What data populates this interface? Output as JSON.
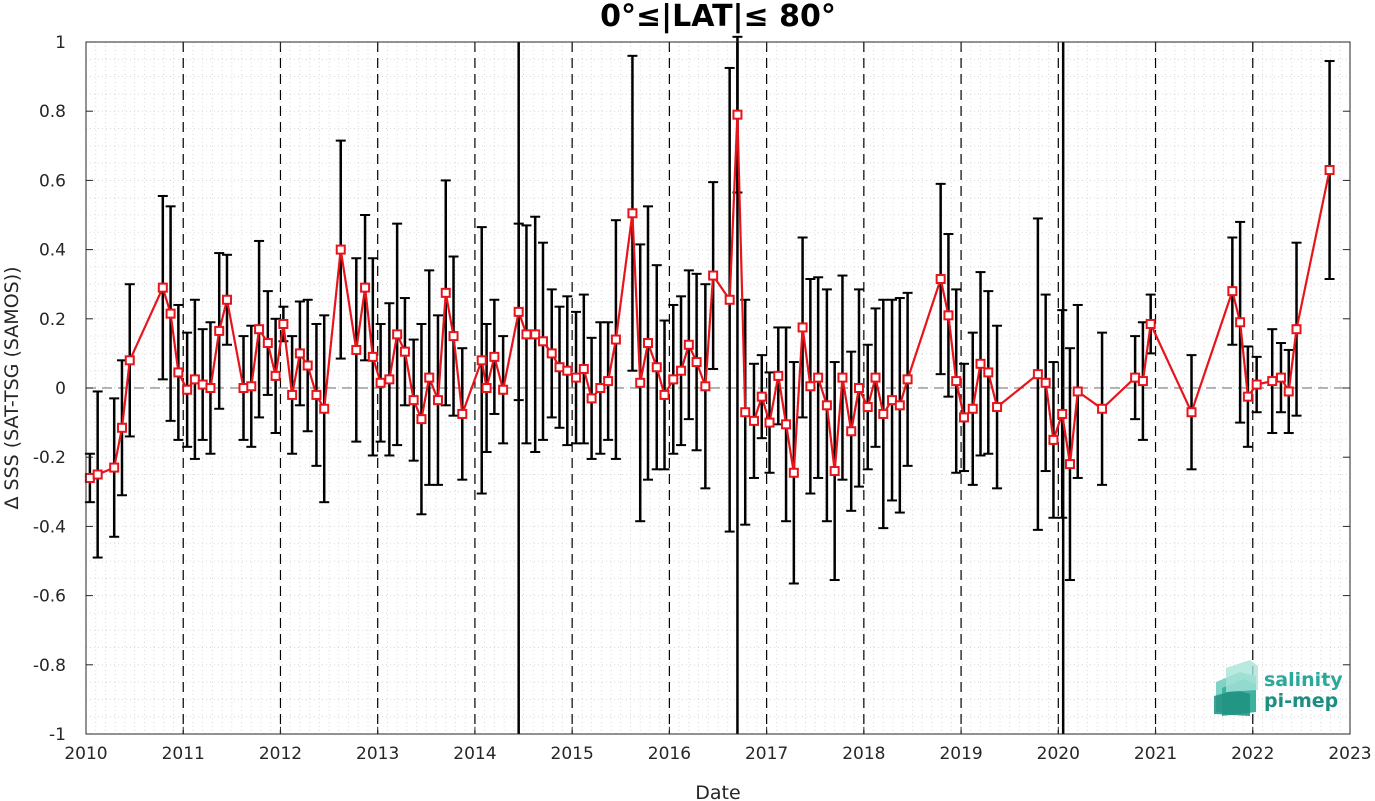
{
  "chart_data": {
    "type": "line",
    "title": "0°≤|LAT|≤ 80°",
    "xlabel": "Date",
    "ylabel": "Δ SSS (SAT-TSG (SAMOS))",
    "xlim": [
      2010,
      2023
    ],
    "ylim": [
      -1,
      1
    ],
    "xticks": [
      "2010",
      "2011",
      "2012",
      "2013",
      "2014",
      "2015",
      "2016",
      "2017",
      "2018",
      "2019",
      "2020",
      "2021",
      "2022",
      "2023"
    ],
    "yticks": [
      "1",
      "0.8",
      "0.6",
      "0.4",
      "0.2",
      "0",
      "-0.2",
      "-0.4",
      "-0.6",
      "-0.8",
      "-1"
    ],
    "grid": "minor dotted",
    "zero_line": 0,
    "year_dividers": [
      2011,
      2012,
      2013,
      2014,
      2015,
      2016,
      2017,
      2018,
      2019,
      2020,
      2021,
      2022
    ],
    "event_lines": [
      2014.45,
      2016.7,
      2020.05
    ],
    "series": [
      {
        "color": "#e8141c",
        "errorbar_color": "#000000",
        "x": [
          2010.04,
          2010.12,
          2010.29,
          2010.37,
          2010.45,
          2010.79,
          2010.87,
          2010.95,
          2011.04,
          2011.12,
          2011.2,
          2011.28,
          2011.37,
          2011.45,
          2011.62,
          2011.7,
          2011.78,
          2011.87,
          2011.95,
          2012.03,
          2012.12,
          2012.2,
          2012.28,
          2012.37,
          2012.45,
          2012.62,
          2012.78,
          2012.87,
          2012.95,
          2013.03,
          2013.12,
          2013.2,
          2013.28,
          2013.37,
          2013.45,
          2013.53,
          2013.62,
          2013.7,
          2013.78,
          2013.87,
          2014.07,
          2014.12,
          2014.2,
          2014.29,
          2014.45,
          2014.53,
          2014.62,
          2014.7,
          2014.79,
          2014.87,
          2014.95,
          2015.04,
          2015.12,
          2015.2,
          2015.29,
          2015.37,
          2015.45,
          2015.62,
          2015.7,
          2015.78,
          2015.87,
          2015.95,
          2016.04,
          2016.12,
          2016.2,
          2016.28,
          2016.37,
          2016.45,
          2016.62,
          2016.7,
          2016.78,
          2016.87,
          2016.95,
          2017.03,
          2017.12,
          2017.2,
          2017.28,
          2017.37,
          2017.45,
          2017.53,
          2017.62,
          2017.7,
          2017.78,
          2017.87,
          2017.95,
          2018.04,
          2018.12,
          2018.2,
          2018.29,
          2018.37,
          2018.45,
          2018.79,
          2018.87,
          2018.95,
          2019.03,
          2019.12,
          2019.2,
          2019.28,
          2019.37,
          2019.79,
          2019.87,
          2019.95,
          2020.04,
          2020.12,
          2020.2,
          2020.45,
          2020.79,
          2020.87,
          2020.95,
          2021.37,
          2021.79,
          2021.87,
          2021.95,
          2022.04,
          2022.2,
          2022.29,
          2022.37,
          2022.45,
          2022.79
        ],
        "y": [
          -0.26,
          -0.25,
          -0.23,
          -0.115,
          0.08,
          0.29,
          0.215,
          0.045,
          -0.005,
          0.025,
          0.01,
          0.0,
          0.165,
          0.255,
          0.0,
          0.005,
          0.17,
          0.13,
          0.035,
          0.185,
          -0.02,
          0.1,
          0.065,
          -0.02,
          -0.06,
          0.4,
          0.11,
          0.29,
          0.09,
          0.015,
          0.025,
          0.155,
          0.105,
          -0.035,
          -0.09,
          0.03,
          -0.035,
          0.275,
          0.15,
          -0.075,
          0.08,
          0.0,
          0.09,
          -0.005,
          0.22,
          0.155,
          0.155,
          0.135,
          0.1,
          0.06,
          0.05,
          0.03,
          0.055,
          -0.03,
          0.0,
          0.02,
          0.14,
          0.505,
          0.015,
          0.13,
          0.06,
          -0.02,
          0.025,
          0.05,
          0.125,
          0.075,
          0.005,
          0.325,
          0.255,
          0.79,
          -0.07,
          -0.095,
          -0.025,
          -0.1,
          0.035,
          -0.105,
          -0.245,
          0.175,
          0.005,
          0.03,
          -0.05,
          -0.24,
          0.03,
          -0.125,
          0.0,
          -0.055,
          0.03,
          -0.075,
          -0.035,
          -0.05,
          0.025,
          0.315,
          0.21,
          0.02,
          -0.085,
          -0.06,
          0.07,
          0.045,
          -0.055,
          0.04,
          0.015,
          -0.15,
          -0.075,
          -0.22,
          -0.01,
          -0.06,
          0.03,
          0.02,
          0.185,
          -0.07,
          0.28,
          0.19,
          -0.025,
          0.01,
          0.02,
          0.03,
          -0.01,
          0.17,
          0.63
        ],
        "err": [
          0.07,
          0.24,
          0.2,
          0.195,
          0.22,
          0.265,
          0.31,
          0.195,
          0.165,
          0.23,
          0.16,
          0.19,
          0.225,
          0.13,
          0.15,
          0.175,
          0.255,
          0.15,
          0.165,
          0.05,
          0.17,
          0.15,
          0.19,
          0.205,
          0.27,
          0.315,
          0.265,
          0.21,
          0.285,
          0.17,
          0.22,
          0.32,
          0.155,
          0.175,
          0.275,
          0.31,
          0.245,
          0.325,
          0.23,
          0.19,
          0.385,
          0.185,
          0.165,
          0.155,
          0.255,
          0.315,
          0.34,
          0.285,
          0.185,
          0.175,
          0.215,
          0.19,
          0.215,
          0.175,
          0.19,
          0.17,
          0.345,
          0.455,
          0.4,
          0.395,
          0.295,
          0.215,
          0.215,
          0.215,
          0.215,
          0.255,
          0.295,
          0.27,
          0.67,
          0.225,
          0.325,
          0.165,
          0.12,
          0.145,
          0.14,
          0.28,
          0.32,
          0.26,
          0.31,
          0.29,
          0.335,
          0.315,
          0.295,
          0.23,
          0.285,
          0.18,
          0.2,
          0.33,
          0.29,
          0.31,
          0.25,
          0.275,
          0.235,
          0.265,
          0.155,
          0.22,
          0.265,
          0.235,
          0.235,
          0.45,
          0.255,
          0.225,
          0.3,
          0.335,
          0.25,
          0.22,
          0.12,
          0.17,
          0.085,
          0.165,
          0.155,
          0.29,
          0.145,
          0.08,
          0.15,
          0.1,
          0.12,
          0.25,
          0.315
        ]
      }
    ]
  },
  "logo": {
    "line1": "salinity",
    "line2": "pi-mep",
    "color": "#2aa99b"
  }
}
